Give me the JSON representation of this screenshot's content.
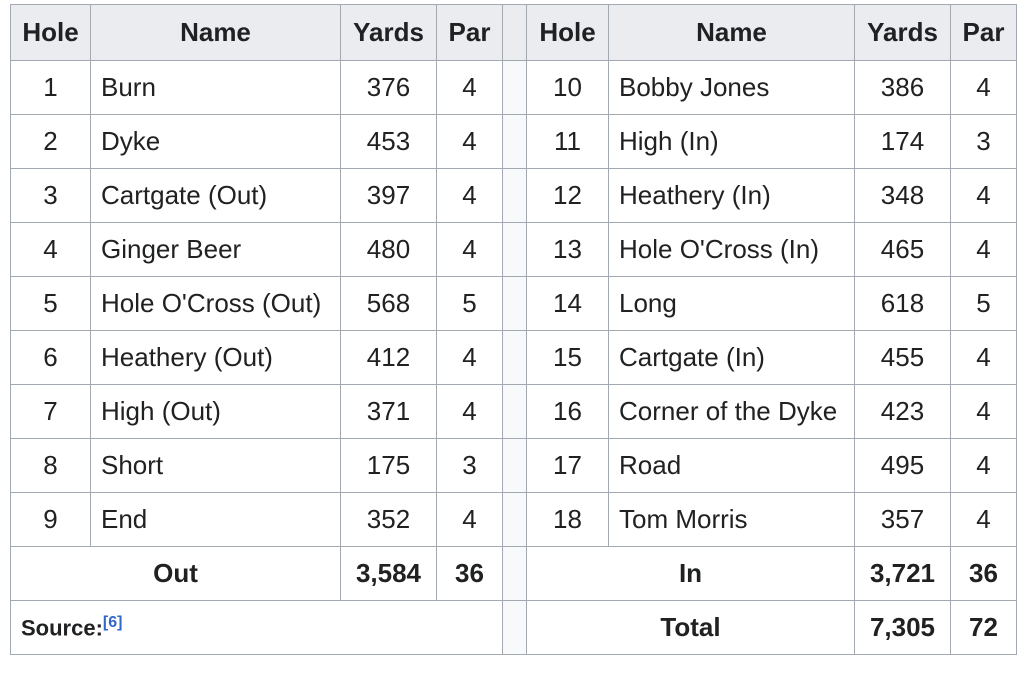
{
  "headers": {
    "hole": "Hole",
    "name": "Name",
    "yards": "Yards",
    "par": "Par"
  },
  "front_nine": [
    {
      "hole": "1",
      "name": "Burn",
      "yards": "376",
      "par": "4"
    },
    {
      "hole": "2",
      "name": "Dyke",
      "yards": "453",
      "par": "4"
    },
    {
      "hole": "3",
      "name": "Cartgate (Out)",
      "yards": "397",
      "par": "4"
    },
    {
      "hole": "4",
      "name": "Ginger Beer",
      "yards": "480",
      "par": "4"
    },
    {
      "hole": "5",
      "name": "Hole O'Cross (Out)",
      "yards": "568",
      "par": "5"
    },
    {
      "hole": "6",
      "name": "Heathery (Out)",
      "yards": "412",
      "par": "4"
    },
    {
      "hole": "7",
      "name": "High (Out)",
      "yards": "371",
      "par": "4"
    },
    {
      "hole": "8",
      "name": "Short",
      "yards": "175",
      "par": "3"
    },
    {
      "hole": "9",
      "name": "End",
      "yards": "352",
      "par": "4"
    }
  ],
  "back_nine": [
    {
      "hole": "10",
      "name": "Bobby Jones",
      "yards": "386",
      "par": "4"
    },
    {
      "hole": "11",
      "name": "High (In)",
      "yards": "174",
      "par": "3"
    },
    {
      "hole": "12",
      "name": "Heathery (In)",
      "yards": "348",
      "par": "4"
    },
    {
      "hole": "13",
      "name": "Hole O'Cross (In)",
      "yards": "465",
      "par": "4"
    },
    {
      "hole": "14",
      "name": "Long",
      "yards": "618",
      "par": "5"
    },
    {
      "hole": "15",
      "name": "Cartgate (In)",
      "yards": "455",
      "par": "4"
    },
    {
      "hole": "16",
      "name": "Corner of the Dyke",
      "yards": "423",
      "par": "4"
    },
    {
      "hole": "17",
      "name": "Road",
      "yards": "495",
      "par": "4"
    },
    {
      "hole": "18",
      "name": "Tom Morris",
      "yards": "357",
      "par": "4"
    }
  ],
  "out_total": {
    "label": "Out",
    "yards": "3,584",
    "par": "36"
  },
  "in_total": {
    "label": "In",
    "yards": "3,721",
    "par": "36"
  },
  "grand_total": {
    "label": "Total",
    "yards": "7,305",
    "par": "72"
  },
  "source": {
    "label": "Source:",
    "ref": "[6]"
  }
}
